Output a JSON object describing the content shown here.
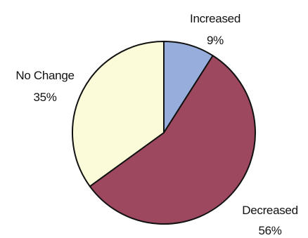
{
  "chart_data": {
    "type": "pie",
    "slices": [
      {
        "label": "Increased",
        "value": 9,
        "display_value": "9%",
        "color": "#97aedc"
      },
      {
        "label": "Decreased",
        "value": 56,
        "display_value": "56%",
        "color": "#9e485f"
      },
      {
        "label": "No Change",
        "value": 35,
        "display_value": "35%",
        "color": "#fbfbd9"
      }
    ],
    "start_angle_deg": 0,
    "direction": "clockwise",
    "outline_color": "#111111",
    "legend": "none",
    "labels_outside": true
  }
}
